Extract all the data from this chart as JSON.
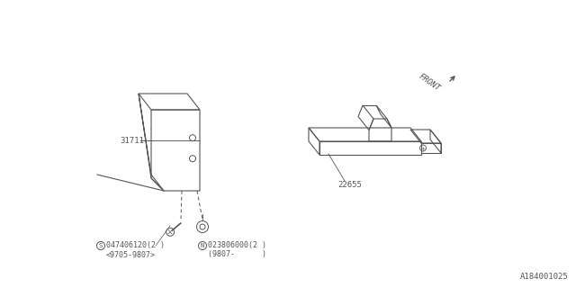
{
  "bg_color": "#ffffff",
  "line_color": "#555555",
  "text_color": "#555555",
  "part_label_31711": "31711",
  "part_label_22655": "22655",
  "screw_label_S": "S047406120(2 )",
  "screw_label_S_sub": "<9705-9807>",
  "screw_label_N": "N023806000(2 )",
  "screw_label_N_sub": "(9807-      )",
  "front_label": "FRONT",
  "catalog_id": "A184001025",
  "font_size_label": 6.5,
  "font_size_small": 6.0,
  "font_size_catalog": 6.5
}
